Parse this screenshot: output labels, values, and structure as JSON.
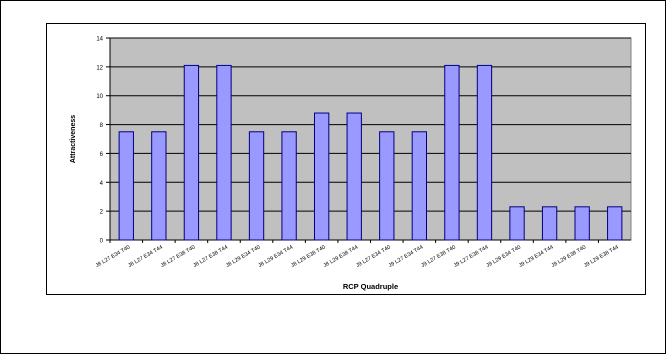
{
  "chart_data": {
    "type": "bar",
    "title": "",
    "xlabel": "RCP Quadruple",
    "ylabel": "Attractiveness",
    "ylim": [
      0,
      14
    ],
    "yticks": [
      0,
      2,
      4,
      6,
      8,
      10,
      12,
      14
    ],
    "grid": true,
    "legend": "none",
    "colors": {
      "bar_fill": "#9999FF",
      "bar_stroke": "#000080",
      "plot_background": "#C0C0C0",
      "gridline": "#000000"
    },
    "categories": [
      "J8 L27 E34 T40",
      "J8 L27 E34 T44",
      "J8 L27 E38 T40",
      "J8 L27 E38 T44",
      "J8 L29 E34 T40",
      "J8 L29 E34 T44",
      "J8 L29 E38 T40",
      "J8 L29 E38 T44",
      "J9 L27 E34 T40",
      "J9 L27 E34 T44",
      "J9 L27 E38 T40",
      "J9 L27 E38 T44",
      "J9 L29 E34 T40",
      "J9 L29 E34 T44",
      "J9 L29 E38 T40",
      "J9 L29 E38 T44"
    ],
    "values": [
      7.5,
      7.5,
      12.1,
      12.1,
      7.5,
      7.5,
      8.8,
      8.8,
      7.5,
      7.5,
      12.1,
      12.1,
      2.3,
      2.3,
      2.3,
      2.3
    ]
  }
}
